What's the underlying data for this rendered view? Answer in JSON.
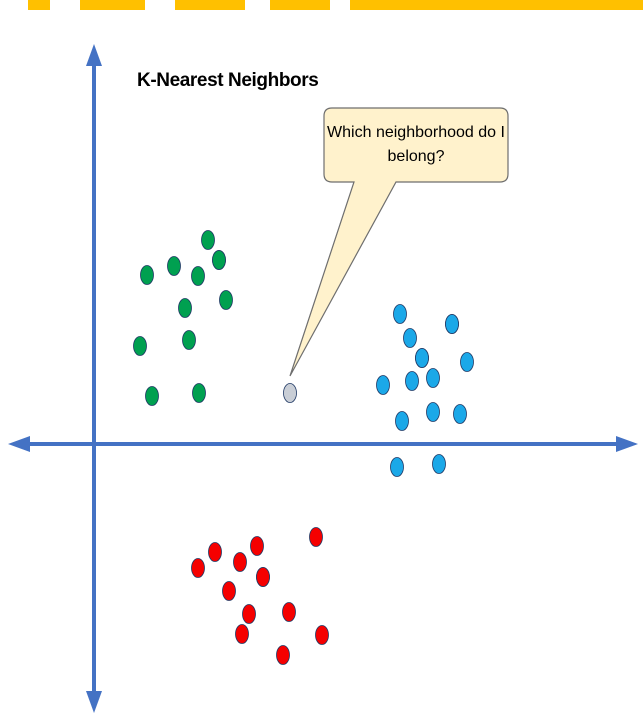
{
  "title": "K-Nearest Neighbors",
  "callout": {
    "text": "Which neighborhood do I belong?"
  },
  "colors": {
    "axis": "#4472C4",
    "green": "#00A050",
    "blue": "#1BA8E8",
    "red": "#F50000",
    "query": "#C9CED6",
    "point_outline": "#1F3864",
    "callout_fill": "#FFF2CC",
    "banner": "#FFC000"
  },
  "clusters": {
    "green": {
      "count": 12
    },
    "blue": {
      "count": 15
    },
    "red": {
      "count": 13
    },
    "query": {
      "count": 1
    }
  }
}
